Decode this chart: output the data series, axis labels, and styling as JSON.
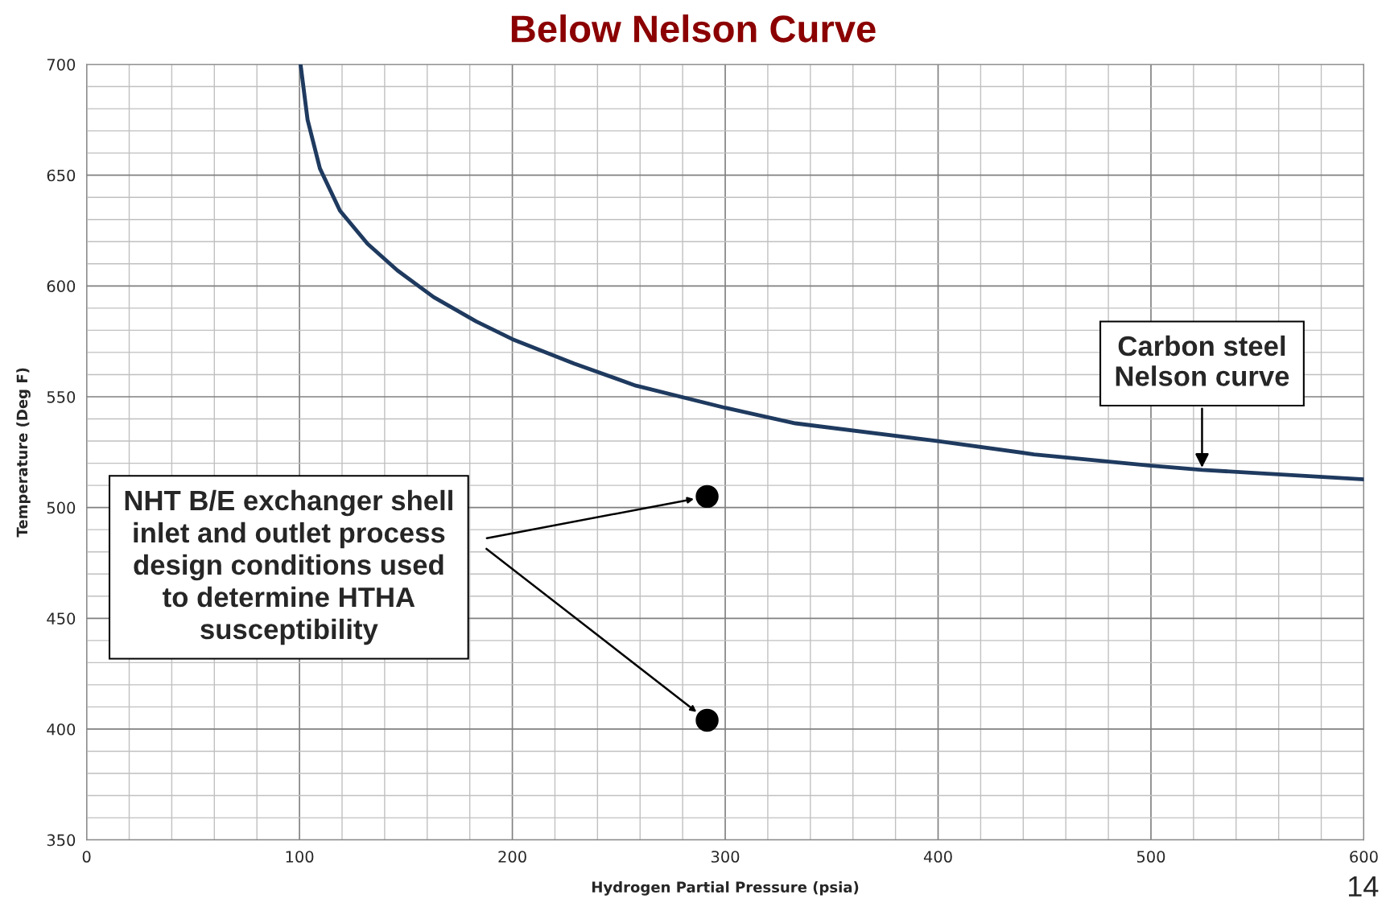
{
  "chart_data": {
    "type": "line",
    "title": "Below Nelson Curve",
    "xlabel": "Hydrogen Partial Pressure (psia)",
    "ylabel": "Temperature (Deg F)",
    "series": [
      {
        "color": "#1f3a5f",
        "x": [
          100.5,
          103.8,
          109.6,
          119,
          132,
          146,
          163,
          183,
          200,
          229,
          258,
          300,
          333,
          400,
          445,
          499,
          524,
          600
        ],
        "values": [
          700,
          675,
          653,
          634,
          619,
          607,
          595,
          584,
          576,
          565,
          555,
          545,
          538,
          530,
          524,
          519,
          517,
          512.7
        ]
      },
      {
        "type": "scatter",
        "marker": "circle",
        "color": "#000000",
        "x": [
          291.5,
          291.5
        ],
        "values": [
          505,
          404
        ]
      }
    ],
    "xlim": [
      0,
      600
    ],
    "xticks": [
      0,
      100,
      200,
      300,
      400,
      500,
      600
    ],
    "ylim": [
      350,
      700
    ],
    "yticks": [
      350,
      400,
      450,
      500,
      550,
      600,
      650,
      700
    ],
    "grid": true,
    "line_style": "solid",
    "annotations": [
      "NHT B/E exchanger shell\ninlet and outlet process\ndesign conditions used\nto determine HTHA\nsusceptibility",
      {
        "text": "Carbon steel\nNelson curve",
        "x": 524,
        "y": 517
      },
      "14"
    ]
  }
}
